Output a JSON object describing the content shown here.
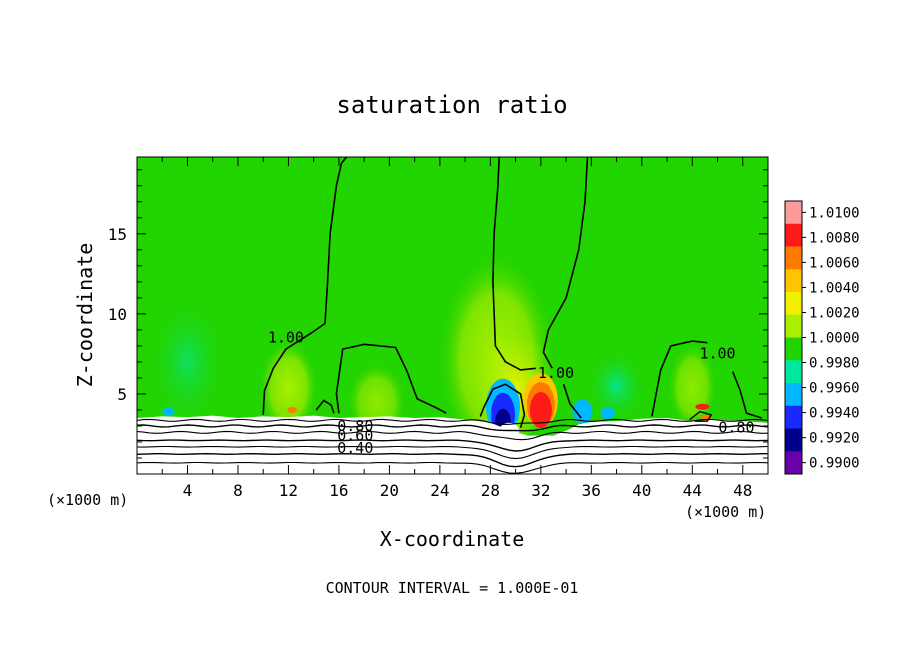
{
  "chart_data": {
    "type": "heatmap",
    "title": "saturation ratio",
    "xlabel": "X-coordinate",
    "ylabel": "Z-coordinate",
    "x_unit_left": "(×1000 m)",
    "x_unit_right": "(×1000 m)",
    "xlim": [
      0,
      50
    ],
    "ylim": [
      0,
      19.8
    ],
    "x_ticks": [
      4,
      8,
      12,
      16,
      20,
      24,
      28,
      32,
      36,
      40,
      44,
      48
    ],
    "y_ticks": [
      5,
      10,
      15
    ],
    "footer": "CONTOUR INTERVAL = 1.000E-01",
    "colorbar": {
      "labels": [
        "1.0100",
        "1.0080",
        "1.0060",
        "1.0040",
        "1.0020",
        "1.0000",
        "0.9980",
        "0.9960",
        "0.9940",
        "0.9920",
        "0.9900"
      ],
      "colors": [
        "#ff9a9a",
        "#ff1a1a",
        "#ff7a00",
        "#ffc400",
        "#f0f000",
        "#a8f000",
        "#22d400",
        "#00e8a0",
        "#00b8ff",
        "#1a2aff",
        "#00008c",
        "#6a00a8"
      ]
    },
    "contour_labels": [
      {
        "text": "1.00",
        "x": 11.8,
        "y": 8.2
      },
      {
        "text": "1.00",
        "x": 33.2,
        "y": 6.0
      },
      {
        "text": "1.00",
        "x": 46.0,
        "y": 7.2
      },
      {
        "text": "0.80",
        "x": 17.3,
        "y": 2.7
      },
      {
        "text": "0.60",
        "x": 17.3,
        "y": 2.1
      },
      {
        "text": "0.40",
        "x": 17.3,
        "y": 1.3
      },
      {
        "text": "0.80",
        "x": 47.5,
        "y": 2.6
      }
    ],
    "field_colors": {
      "background": "#22d400",
      "near_one": "#a8f000",
      "supersat_1": "#f0f000",
      "supersat_2": "#ffc400",
      "supersat_3": "#ff7a00",
      "supersat_4": "#ff1a1a",
      "subsat_1": "#00e8a0",
      "subsat_2": "#00b8ff",
      "subsat_3": "#1a2aff",
      "subsat_4": "#00008c",
      "below_range": "#ffffff"
    }
  }
}
